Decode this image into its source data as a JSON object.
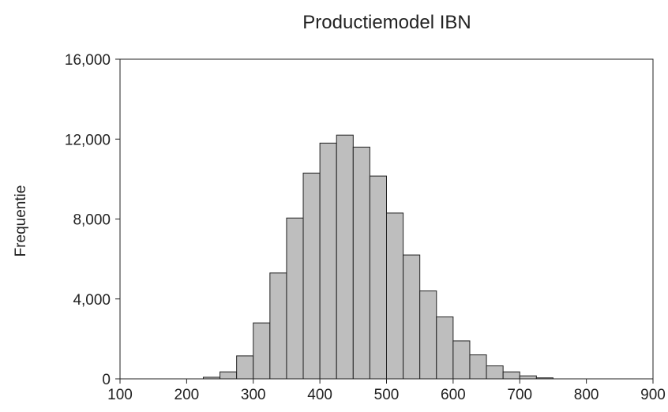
{
  "chart_data": {
    "type": "bar",
    "title": "Productiemodel IBN",
    "xlabel": "",
    "ylabel": "Frequentie",
    "xlim": [
      100,
      900
    ],
    "ylim": [
      0,
      16000
    ],
    "xticks": [
      100,
      200,
      300,
      400,
      500,
      600,
      700,
      800,
      900
    ],
    "xtick_labels": [
      "100",
      "200",
      "300",
      "400",
      "500",
      "600",
      "700",
      "800",
      "900"
    ],
    "yticks": [
      0,
      4000,
      8000,
      12000,
      16000
    ],
    "ytick_labels": [
      "0",
      "4,000",
      "8,000",
      "12,000",
      "16,000"
    ],
    "bin_width": 25,
    "bins": [
      {
        "start": 225,
        "value": 80
      },
      {
        "start": 250,
        "value": 350
      },
      {
        "start": 275,
        "value": 1150
      },
      {
        "start": 300,
        "value": 2800
      },
      {
        "start": 325,
        "value": 5300
      },
      {
        "start": 350,
        "value": 8050
      },
      {
        "start": 375,
        "value": 10300
      },
      {
        "start": 400,
        "value": 11800
      },
      {
        "start": 425,
        "value": 12200
      },
      {
        "start": 450,
        "value": 11600
      },
      {
        "start": 475,
        "value": 10150
      },
      {
        "start": 500,
        "value": 8300
      },
      {
        "start": 525,
        "value": 6200
      },
      {
        "start": 550,
        "value": 4400
      },
      {
        "start": 575,
        "value": 3100
      },
      {
        "start": 600,
        "value": 1900
      },
      {
        "start": 625,
        "value": 1200
      },
      {
        "start": 650,
        "value": 650
      },
      {
        "start": 675,
        "value": 350
      },
      {
        "start": 700,
        "value": 150
      },
      {
        "start": 725,
        "value": 50
      }
    ],
    "bar_color": "#bebebe",
    "edge_color": "#222222",
    "grid": false,
    "legend": "none"
  }
}
